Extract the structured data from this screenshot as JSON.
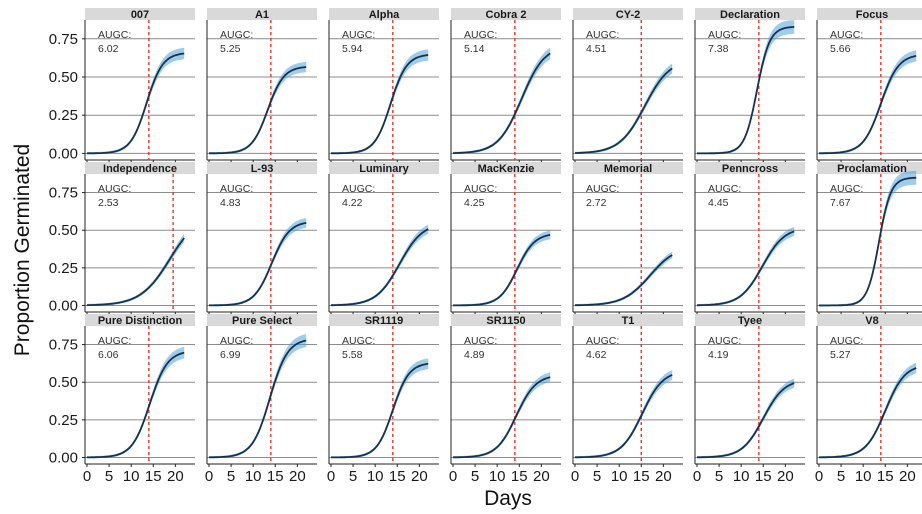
{
  "chart_data": {
    "type": "line",
    "layout": "faceted small multiples (3 rows x 7 columns)",
    "xlabel": "Days",
    "ylabel": "Proportion Germinated",
    "xlim": [
      0,
      24
    ],
    "ylim": [
      -0.03,
      0.86
    ],
    "x_ticks": [
      0,
      5,
      10,
      15,
      20
    ],
    "x_tick_labels": [
      "0",
      "5",
      "10",
      "15",
      "20"
    ],
    "y_ticks": [
      0,
      0.25,
      0.5,
      0.75
    ],
    "y_tick_labels": [
      "0.00",
      "0.25",
      "0.50",
      "0.75"
    ],
    "grid": "horizontal major gridlines",
    "annotation_prefix": "AUGC:",
    "colors": {
      "curve": "#16324f",
      "ribbon": "#4fa3dc",
      "reference_line": "#e5342b",
      "strip": "#d9d9d9",
      "gridline": "#8c8c8c"
    },
    "panels": [
      {
        "cultivar": "007",
        "augc": "6.02",
        "ref_day": 14,
        "asymptote": 0.66,
        "midpoint": 13.5,
        "rate": 0.55
      },
      {
        "cultivar": "A1",
        "augc": "5.25",
        "ref_day": 14,
        "asymptote": 0.57,
        "midpoint": 13.3,
        "rate": 0.55
      },
      {
        "cultivar": "Alpha",
        "augc": "5.94",
        "ref_day": 14,
        "asymptote": 0.65,
        "midpoint": 13.5,
        "rate": 0.55
      },
      {
        "cultivar": "Cobra 2",
        "augc": "5.14",
        "ref_day": 14,
        "asymptote": 0.71,
        "midpoint": 15.5,
        "rate": 0.38
      },
      {
        "cultivar": "CY-2",
        "augc": "4.51",
        "ref_day": 15,
        "asymptote": 0.62,
        "midpoint": 15.8,
        "rate": 0.35
      },
      {
        "cultivar": "Declaration",
        "augc": "7.38",
        "ref_day": 14,
        "asymptote": 0.83,
        "midpoint": 13.6,
        "rate": 0.7
      },
      {
        "cultivar": "Focus",
        "augc": "5.66",
        "ref_day": 14,
        "asymptote": 0.65,
        "midpoint": 14.0,
        "rate": 0.5
      },
      {
        "cultivar": "Independence",
        "augc": "2.53",
        "ref_day": 19.5,
        "asymptote": 0.62,
        "midpoint": 18.8,
        "rate": 0.3
      },
      {
        "cultivar": "L-93",
        "augc": "4.83",
        "ref_day": 14,
        "asymptote": 0.56,
        "midpoint": 14.2,
        "rate": 0.5
      },
      {
        "cultivar": "Luminary",
        "augc": "4.22",
        "ref_day": 14,
        "asymptote": 0.55,
        "midpoint": 15.5,
        "rate": 0.38
      },
      {
        "cultivar": "MacKenzie",
        "augc": "4.25",
        "ref_day": 14,
        "asymptote": 0.48,
        "midpoint": 14.5,
        "rate": 0.5
      },
      {
        "cultivar": "Memorial",
        "augc": "2.72",
        "ref_day": 15,
        "asymptote": 0.4,
        "midpoint": 17.0,
        "rate": 0.33
      },
      {
        "cultivar": "Penncross",
        "augc": "4.45",
        "ref_day": 14,
        "asymptote": 0.52,
        "midpoint": 14.8,
        "rate": 0.4
      },
      {
        "cultivar": "Proclamation",
        "augc": "7.67",
        "ref_day": 14,
        "asymptote": 0.85,
        "midpoint": 13.6,
        "rate": 0.75
      },
      {
        "cultivar": "Pure Distinction",
        "augc": "6.06",
        "ref_day": 14,
        "asymptote": 0.71,
        "midpoint": 14.2,
        "rate": 0.5
      },
      {
        "cultivar": "Pure Select",
        "augc": "6.99",
        "ref_day": 14,
        "asymptote": 0.79,
        "midpoint": 13.8,
        "rate": 0.5
      },
      {
        "cultivar": "SR1119",
        "augc": "5.58",
        "ref_day": 14,
        "asymptote": 0.63,
        "midpoint": 14.0,
        "rate": 0.55
      },
      {
        "cultivar": "SR1150",
        "augc": "4.89",
        "ref_day": 14,
        "asymptote": 0.55,
        "midpoint": 14.3,
        "rate": 0.45
      },
      {
        "cultivar": "T1",
        "augc": "4.62",
        "ref_day": 15,
        "asymptote": 0.58,
        "midpoint": 15.2,
        "rate": 0.42
      },
      {
        "cultivar": "Tyee",
        "augc": "4.19",
        "ref_day": 14,
        "asymptote": 0.52,
        "midpoint": 15.0,
        "rate": 0.42
      },
      {
        "cultivar": "V8",
        "augc": "5.27",
        "ref_day": 14,
        "asymptote": 0.62,
        "midpoint": 15.0,
        "rate": 0.45
      }
    ]
  }
}
